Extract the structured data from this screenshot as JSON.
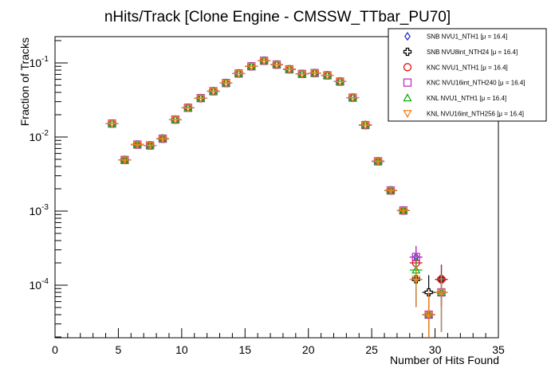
{
  "chart_data": {
    "type": "scatter",
    "title": "nHits/Track [Clone Engine - CMSSW_TTbar_PU70]",
    "xlabel": "Number of Hits Found",
    "ylabel": "Fraction of Tracks",
    "xlim": [
      0,
      35
    ],
    "ylim": [
      2e-05,
      0.2
    ],
    "yscale": "log",
    "grid": false,
    "legend_position": "top-right",
    "x_ticks": [
      0,
      5,
      10,
      15,
      20,
      25,
      30,
      35
    ],
    "x_tick_labels": [
      "0",
      "5",
      "10",
      "15",
      "20",
      "25",
      "30",
      "35"
    ],
    "y_ticks": [
      0.0001,
      0.001,
      0.01,
      0.1
    ],
    "y_tick_labels": [
      {
        "base": "10",
        "exp": "-4"
      },
      {
        "base": "10",
        "exp": "-3"
      },
      {
        "base": "10",
        "exp": "-2"
      },
      {
        "base": "10",
        "exp": "-1"
      }
    ],
    "x": [
      4.5,
      5.5,
      6.5,
      7.5,
      8.5,
      9.5,
      10.5,
      11.5,
      12.5,
      13.5,
      14.5,
      15.5,
      16.5,
      17.5,
      18.5,
      19.5,
      20.5,
      21.5,
      22.5,
      23.5,
      24.5,
      25.5,
      26.5,
      27.5,
      28.5,
      29.5,
      30.5
    ],
    "series": [
      {
        "name": "SNB NVU1_NTH1 [μ = 16.4]",
        "marker": "diamond",
        "color": "#3030c8",
        "values": [
          0.0152,
          0.0049,
          0.0079,
          0.0077,
          0.0095,
          0.0172,
          0.0248,
          0.0335,
          0.0415,
          0.0535,
          0.072,
          0.09,
          0.107,
          0.095,
          0.082,
          0.071,
          0.073,
          0.068,
          0.056,
          0.034,
          0.0145,
          0.0047,
          0.0019,
          0.00102,
          0.00024,
          4e-05,
          8e-05
        ]
      },
      {
        "name": "SNB NVU8int_NTH24 [μ = 16.4]",
        "marker": "cross",
        "color": "#000000",
        "values": [
          0.0152,
          0.0049,
          0.0079,
          0.0077,
          0.0095,
          0.0172,
          0.0248,
          0.0335,
          0.0415,
          0.0535,
          0.072,
          0.09,
          0.107,
          0.095,
          0.082,
          0.071,
          0.073,
          0.068,
          0.056,
          0.034,
          0.0145,
          0.0047,
          0.0019,
          0.00102,
          0.00012,
          8e-05,
          0.00012
        ]
      },
      {
        "name": "KNC NVU1_NTH1 [μ = 16.4]",
        "marker": "circle",
        "color": "#e01010",
        "values": [
          0.0152,
          0.0049,
          0.0079,
          0.0077,
          0.0095,
          0.0172,
          0.0248,
          0.0335,
          0.0415,
          0.0535,
          0.072,
          0.09,
          0.107,
          0.095,
          0.082,
          0.071,
          0.073,
          0.068,
          0.056,
          0.034,
          0.0145,
          0.0047,
          0.0019,
          0.00102,
          0.0002,
          4e-05,
          0.00012
        ]
      },
      {
        "name": "KNC NVU16int_NTH240 [μ = 16.4]",
        "marker": "square",
        "color": "#c030c0",
        "values": [
          0.0152,
          0.0049,
          0.0079,
          0.0077,
          0.0095,
          0.0172,
          0.0248,
          0.0335,
          0.0415,
          0.0535,
          0.072,
          0.09,
          0.107,
          0.095,
          0.082,
          0.071,
          0.073,
          0.068,
          0.056,
          0.034,
          0.0145,
          0.0047,
          0.0019,
          0.00102,
          0.00024,
          4e-05,
          8e-05
        ]
      },
      {
        "name": "KNL NVU1_NTH1 [μ = 16.4]",
        "marker": "triangle-up",
        "color": "#10b010",
        "values": [
          0.0152,
          0.0049,
          0.0079,
          0.0077,
          0.0095,
          0.0172,
          0.0248,
          0.0335,
          0.0415,
          0.0535,
          0.072,
          0.09,
          0.107,
          0.095,
          0.082,
          0.071,
          0.073,
          0.068,
          0.056,
          0.034,
          0.0145,
          0.0047,
          0.0019,
          0.00102,
          0.00016,
          4e-05,
          8e-05
        ]
      },
      {
        "name": "KNL NVU16int_NTH256 [μ = 16.4]",
        "marker": "triangle-down",
        "color": "#f08020",
        "values": [
          0.0152,
          0.0049,
          0.0079,
          0.0077,
          0.0095,
          0.0172,
          0.0248,
          0.0335,
          0.0415,
          0.0535,
          0.072,
          0.09,
          0.107,
          0.095,
          0.082,
          0.071,
          0.073,
          0.068,
          0.056,
          0.034,
          0.0145,
          0.0047,
          0.0019,
          0.00102,
          0.00012,
          4e-05,
          8e-05
        ]
      }
    ]
  }
}
